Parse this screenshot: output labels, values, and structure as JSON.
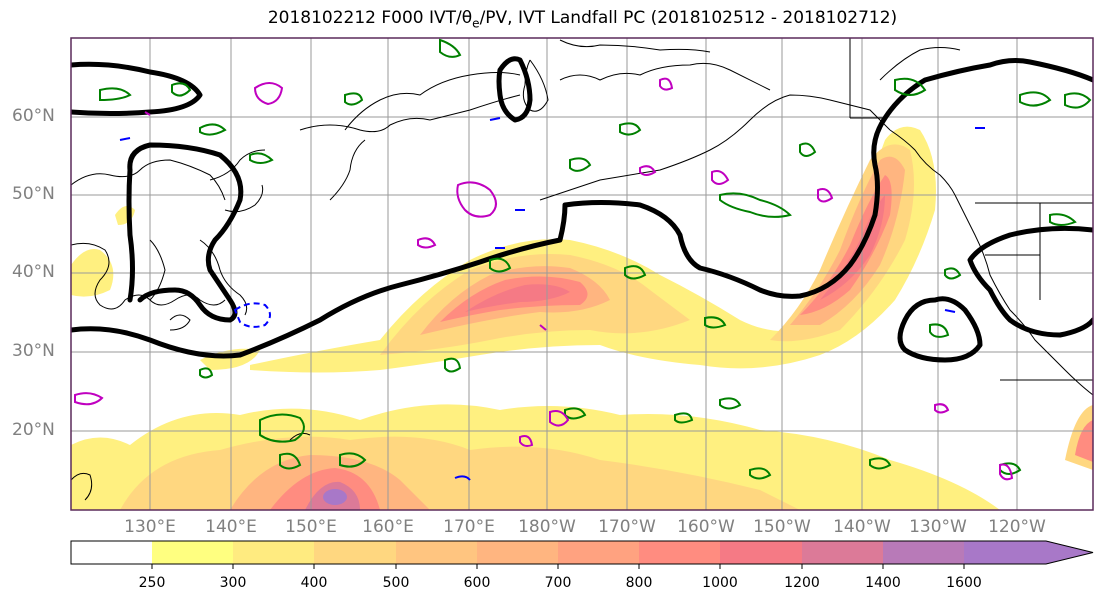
{
  "title": {
    "prefix": "2018102212 F000 IVT/",
    "theta": "θ",
    "theta_sub": "e",
    "suffix": "/PV, IVT Landfall PC (2018102512 - 2018102712)"
  },
  "lat_labels": [
    "60°N",
    "50°N",
    "40°N",
    "30°N",
    "20°N"
  ],
  "lon_labels": [
    "130°E",
    "140°E",
    "150°E",
    "160°E",
    "170°E",
    "180°W",
    "170°W",
    "160°W",
    "150°W",
    "140°W",
    "130°W",
    "120°W"
  ],
  "colorbar": {
    "levels": [
      "250",
      "300",
      "400",
      "500",
      "600",
      "700",
      "800",
      "1000",
      "1200",
      "1400",
      "1600"
    ],
    "colors": [
      "#ffff80",
      "#ffeb80",
      "#ffd780",
      "#ffc580",
      "#ffb580",
      "#ffa280",
      "#ff8c80",
      "#f57a85",
      "#dc7a98",
      "#b87ab8",
      "#a878c8"
    ]
  },
  "map_colors": {
    "frame": "#5a2a5a",
    "grid": "#9a9a9a",
    "coast": "#000000",
    "theta_e_contour": "#000000",
    "pv_green": "#008000",
    "pv_blue": "#0000ff",
    "pv_magenta": "#c000c0"
  }
}
